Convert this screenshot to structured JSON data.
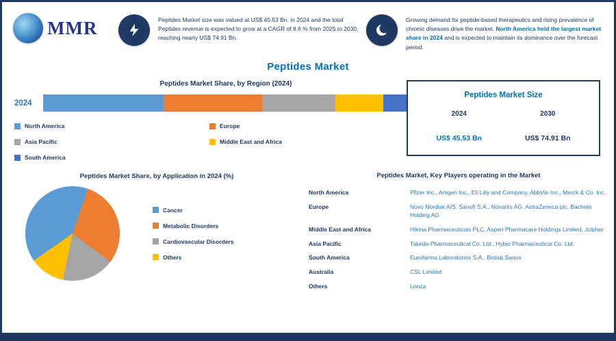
{
  "logo": {
    "brand": "MMR"
  },
  "title": "Peptides Market",
  "header": {
    "items": [
      {
        "icon": "lightning-icon",
        "text": "Peptides Market size was valued at US$ 45.53 Bn. in 2024 and the total Peptides revenue is expected to grow at a CAGR of 8.6 % from 2025 to 2030, reaching nearly US$ 74.91 Bn."
      },
      {
        "icon": "swoosh-icon",
        "text_before": "Growing demand for peptide-based therapeutics and rising prevalence of chronic diseases drive the market. ",
        "highlight": "North America held the largest market share in 2024",
        "text_after": " and is expected to maintain its dominance over the forecast period."
      }
    ]
  },
  "bar_section": {
    "title": "Peptides Market Share, by Region (2024)",
    "year_label": "2024"
  },
  "market_size_box": {
    "title": "Peptides Market Size",
    "year_start": "2024",
    "year_end": "2030",
    "value_start": "US$ 45.53 Bn",
    "value_end": "US$ 74.91 Bn"
  },
  "pie_section": {
    "title": "Peptides Market Share, by Application in 2024 (%)"
  },
  "key_players": {
    "title": "Peptides Market, Key Players operating in the Market",
    "rows": [
      {
        "label": "North America",
        "companies": "Pfizer Inc., Amgen Inc., Eli Lilly and Company, AbbVie Inc., Merck & Co. Inc."
      },
      {
        "label": "Europe",
        "companies": "Novo Nordisk A/S, Sanofi S.A., Novartis AG, AstraZeneca plc, Bachem Holding AG"
      },
      {
        "label": "Middle East and Africa",
        "companies": "Hikma Pharmaceuticals PLC, Aspen Pharmacare Holdings Limited, Julphar"
      },
      {
        "label": "Asia Pacific",
        "companies": "Takeda Pharmaceutical Co. Ltd., Hybio Pharmaceutical Co. Ltd."
      },
      {
        "label": "South America",
        "companies": "Eurofarma Laboratorios S.A., Biolab Sanus"
      },
      {
        "label": "Australia",
        "companies": "CSL Limited"
      },
      {
        "label": "Others",
        "companies": "Lonza"
      }
    ]
  },
  "chart_data": [
    {
      "type": "bar",
      "orientation": "horizontal",
      "stacked": true,
      "title": "Peptides Market Share, by Region (2024)",
      "categories": [
        "2024"
      ],
      "series": [
        {
          "name": "North America",
          "values": [
            33
          ],
          "color": "#5b9bd5"
        },
        {
          "name": "Europe",
          "values": [
            27
          ],
          "color": "#ed7d31"
        },
        {
          "name": "Asia Pacific",
          "values": [
            20
          ],
          "color": "#a5a5a5"
        },
        {
          "name": "Middle East and Africa",
          "values": [
            13
          ],
          "color": "#ffc000"
        },
        {
          "name": "South America",
          "values": [
            7
          ],
          "color": "#4472c4"
        }
      ],
      "xlim": [
        0,
        100
      ],
      "legend_position": "bottom",
      "grid": false
    },
    {
      "type": "pie",
      "title": "Peptides Market Share, by Application in 2024 (%)",
      "labels": [
        "Cancer",
        "Metabolic Disorders",
        "Cardiovascular Disorders",
        "Others"
      ],
      "values": [
        40,
        30,
        18,
        12
      ],
      "colors": [
        "#5b9bd5",
        "#ed7d31",
        "#a5a5a5",
        "#ffc000"
      ],
      "start_angle": 235,
      "legend_position": "right"
    }
  ],
  "colors": {
    "navy": "#1f3864",
    "title_blue": "#0070c0",
    "link_blue": "#2e75b6"
  }
}
